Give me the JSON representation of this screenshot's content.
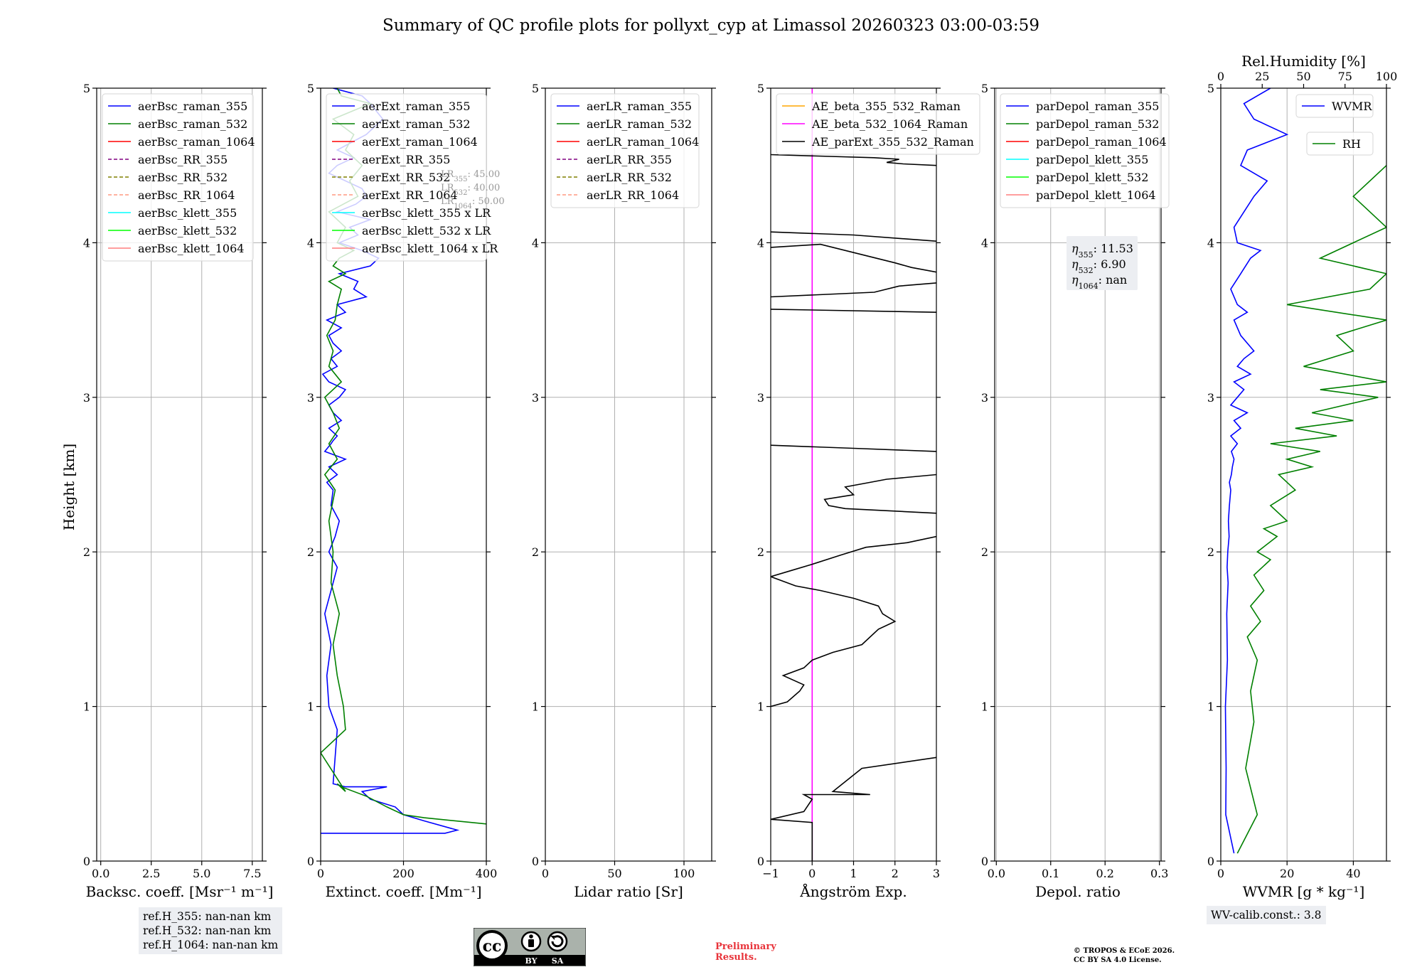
{
  "figure": {
    "title": "Summary of QC profile plots for pollyxt_cyp at Limassol 20260323 03:00-03:59",
    "ylabel": "Height [km]",
    "ref_heights": [
      "ref.H_355: nan-nan km",
      "ref.H_532: nan-nan km",
      "ref.H_1064: nan-nan km"
    ],
    "wv_calib": "WV-calib.const.: 3.8",
    "preliminary": [
      "Preliminary",
      "Results."
    ],
    "copyright": [
      "© TROPOS & ECoE 2026.",
      "CC BY SA 4.0 License."
    ],
    "cc_logo": {
      "by": "BY",
      "sa": "SA",
      "cc": "cc"
    }
  },
  "colors": {
    "blue": "#0000ff",
    "green": "#008000",
    "red": "#ff0000",
    "purple": "#800080",
    "olive": "#808000",
    "salmon": "#ff9980",
    "cyan": "#00ffff",
    "lime": "#00ff00",
    "lightred": "#ff7f7f",
    "orange": "#ffa500",
    "magenta": "#ff00ff",
    "black": "#000000"
  },
  "chart_data": [
    {
      "type": "line",
      "id": "bsc",
      "xlabel": "Backsc. coeff. [Msr⁻¹ m⁻¹]",
      "xlim": [
        -0.2,
        8.0
      ],
      "ylim": [
        0,
        5
      ],
      "xticks": [
        0,
        2.5,
        5,
        7.5
      ],
      "xtick_labels": [
        "0.0",
        "2.5",
        "5.0",
        "7.5"
      ],
      "yticks": [
        0,
        1,
        2,
        3,
        4,
        5
      ],
      "ytick_labels": [
        "0",
        "1",
        "2",
        "3",
        "4",
        "5"
      ],
      "grid": true,
      "legend_position": "top-left",
      "legend": [
        {
          "label": "aerBsc_raman_355",
          "color": "blue",
          "dash": false
        },
        {
          "label": "aerBsc_raman_532",
          "color": "green",
          "dash": false
        },
        {
          "label": "aerBsc_raman_1064",
          "color": "red",
          "dash": false
        },
        {
          "label": "aerBsc_RR_355",
          "color": "purple",
          "dash": true
        },
        {
          "label": "aerBsc_RR_532",
          "color": "olive",
          "dash": true
        },
        {
          "label": "aerBsc_RR_1064",
          "color": "salmon",
          "dash": true
        },
        {
          "label": "aerBsc_klett_355",
          "color": "cyan",
          "dash": false
        },
        {
          "label": "aerBsc_klett_532",
          "color": "lime",
          "dash": false
        },
        {
          "label": "aerBsc_klett_1064",
          "color": "lightred",
          "dash": false
        }
      ],
      "series": []
    },
    {
      "type": "line",
      "id": "ext",
      "xlabel": "Extinct. coeff. [Mm⁻¹]",
      "xlim": [
        0,
        400
      ],
      "ylim": [
        0,
        5
      ],
      "xticks": [
        0,
        200,
        400
      ],
      "xtick_labels": [
        "0",
        "200",
        "400"
      ],
      "yticks": [
        0,
        1,
        2,
        3,
        4,
        5
      ],
      "ytick_labels": [
        "0",
        "1",
        "2",
        "3",
        "4",
        "5"
      ],
      "grid": true,
      "legend_position": "top-left",
      "legend": [
        {
          "label": "aerExt_raman_355",
          "color": "blue",
          "dash": false
        },
        {
          "label": "aerExt_raman_532",
          "color": "green",
          "dash": false
        },
        {
          "label": "aerExt_raman_1064",
          "color": "red",
          "dash": false
        },
        {
          "label": "aerExt_RR_355",
          "color": "purple",
          "dash": true
        },
        {
          "label": "aerExt_RR_532",
          "color": "olive",
          "dash": true
        },
        {
          "label": "aerExt_RR_1064",
          "color": "salmon",
          "dash": true
        },
        {
          "label": "aerBsc_klett_355 x LR",
          "color": "cyan",
          "dash": false
        },
        {
          "label": "aerBsc_klett_532 x LR",
          "color": "lime",
          "dash": false
        },
        {
          "label": "aerBsc_klett_1064 x LR",
          "color": "lightred",
          "dash": false
        }
      ],
      "annotations": [
        "LR355: 45.00",
        "LR532: 40.00",
        "LR1064: 50.00"
      ],
      "series": [
        {
          "name": "aerExt_raman_355",
          "color": "blue",
          "x": [
            0,
            300,
            330,
            250,
            200,
            180,
            120,
            100,
            160,
            60,
            30,
            40,
            20,
            15,
            25,
            10,
            30,
            40,
            20,
            35,
            45,
            25,
            30,
            15,
            40,
            20,
            60,
            10,
            25,
            30,
            40,
            20,
            50,
            30,
            20,
            45,
            60,
            20,
            5,
            40,
            25,
            50,
            30,
            20,
            50,
            15,
            60,
            40,
            110,
            80,
            90,
            45,
            120,
            140,
            100,
            45,
            90,
            70,
            120,
            40,
            85,
            110,
            100,
            60,
            20,
            40,
            80,
            40,
            110,
            150,
            120,
            100,
            30
          ],
          "y": [
            0.18,
            0.18,
            0.2,
            0.26,
            0.3,
            0.35,
            0.4,
            0.45,
            0.48,
            0.48,
            0.5,
            0.85,
            1.0,
            1.2,
            1.4,
            1.6,
            1.8,
            1.9,
            2.0,
            2.1,
            2.2,
            2.3,
            2.4,
            2.45,
            2.5,
            2.55,
            2.6,
            2.65,
            2.7,
            2.72,
            2.75,
            2.8,
            2.85,
            2.9,
            2.95,
            3.0,
            3.05,
            3.1,
            3.15,
            3.2,
            3.25,
            3.3,
            3.35,
            3.4,
            3.45,
            3.5,
            3.55,
            3.6,
            3.65,
            3.7,
            3.75,
            3.8,
            3.85,
            3.9,
            3.95,
            4.0,
            4.05,
            4.1,
            4.15,
            4.2,
            4.25,
            4.3,
            4.35,
            4.4,
            4.45,
            4.5,
            4.55,
            4.6,
            4.7,
            4.8,
            4.9,
            4.95,
            5.0
          ]
        },
        {
          "name": "aerExt_raman_532",
          "color": "green",
          "x": [
            420,
            400,
            250,
            200,
            160,
            110,
            50,
            40,
            60,
            0,
            60,
            55,
            40,
            30,
            45,
            25,
            30,
            20,
            35,
            10,
            40,
            20,
            45,
            30,
            10,
            50,
            20,
            30,
            15,
            35,
            40,
            50,
            20,
            60,
            30,
            45,
            80,
            40,
            60,
            20,
            90,
            70,
            100,
            60,
            80,
            30,
            120,
            50,
            40
          ],
          "y": [
            0.18,
            0.24,
            0.28,
            0.3,
            0.35,
            0.42,
            0.48,
            0.5,
            0.45,
            0.7,
            0.85,
            1.0,
            1.2,
            1.4,
            1.6,
            1.8,
            2.0,
            2.2,
            2.4,
            2.5,
            2.6,
            2.7,
            2.8,
            2.9,
            3.0,
            3.1,
            3.2,
            3.3,
            3.4,
            3.5,
            3.6,
            3.7,
            3.75,
            3.8,
            3.85,
            3.9,
            3.95,
            4.0,
            4.1,
            4.2,
            4.3,
            4.4,
            4.5,
            4.6,
            4.7,
            4.8,
            4.9,
            4.95,
            5.0
          ]
        }
      ]
    },
    {
      "type": "line",
      "id": "lr",
      "xlabel": "Lidar ratio [Sr]",
      "xlim": [
        0,
        120
      ],
      "ylim": [
        0,
        5
      ],
      "xticks": [
        0,
        50,
        100
      ],
      "xtick_labels": [
        "0",
        "50",
        "100"
      ],
      "yticks": [
        0,
        1,
        2,
        3,
        4,
        5
      ],
      "ytick_labels": [
        "0",
        "1",
        "2",
        "3",
        "4",
        "5"
      ],
      "grid": true,
      "legend_position": "top-left",
      "legend": [
        {
          "label": "aerLR_raman_355",
          "color": "blue",
          "dash": false
        },
        {
          "label": "aerLR_raman_532",
          "color": "green",
          "dash": false
        },
        {
          "label": "aerLR_raman_1064",
          "color": "red",
          "dash": false
        },
        {
          "label": "aerLR_RR_355",
          "color": "purple",
          "dash": true
        },
        {
          "label": "aerLR_RR_532",
          "color": "olive",
          "dash": true
        },
        {
          "label": "aerLR_RR_1064",
          "color": "salmon",
          "dash": true
        }
      ],
      "series": []
    },
    {
      "type": "line",
      "id": "ae",
      "xlabel": "Ångström Exp.",
      "xlim": [
        -1,
        3
      ],
      "ylim": [
        0,
        5
      ],
      "xticks": [
        -1,
        0,
        1,
        2,
        3
      ],
      "xtick_labels": [
        "−1",
        "0",
        "1",
        "2",
        "3"
      ],
      "yticks": [
        0,
        1,
        2,
        3,
        4,
        5
      ],
      "ytick_labels": [
        "0",
        "1",
        "2",
        "3",
        "4",
        "5"
      ],
      "grid": true,
      "legend_position": "top-left",
      "legend": [
        {
          "label": "AE_beta_355_532_Raman",
          "color": "orange",
          "dash": false
        },
        {
          "label": "AE_beta_532_1064_Raman",
          "color": "magenta",
          "dash": false
        },
        {
          "label": "AE_parExt_355_532_Raman",
          "color": "black",
          "dash": false
        }
      ],
      "series": [
        {
          "name": "AE_beta_532_1064_Raman",
          "color": "magenta",
          "x": [
            0,
            0
          ],
          "y": [
            0,
            5
          ]
        },
        {
          "name": "AE_parExt_355_532_Raman",
          "color": "black",
          "x": [
            0,
            0,
            -1,
            -0.2,
            0.0,
            -0.2,
            1.4,
            0.5,
            1.2,
            3.0,
            null,
            -1,
            -0.6,
            -0.3,
            -0.2,
            -0.7,
            -0.2,
            0.0,
            0.5,
            1.2,
            1.6,
            2.0,
            1.7,
            1.6,
            1.0,
            0.2,
            -0.4,
            -1,
            -0.5,
            0.0,
            0.7,
            1.3,
            2.3,
            3.0,
            null,
            3.0,
            0.8,
            0.4,
            0.3,
            1.0,
            0.8,
            1.4,
            1.8,
            3.0,
            null,
            -1,
            1.0,
            3.0,
            null,
            -1,
            3.0,
            null,
            -1,
            1.5,
            2.1,
            3.0,
            null,
            -1,
            0.2,
            2.0,
            2.4,
            3.0,
            null,
            -1,
            1.0,
            3.0,
            null,
            -1,
            1.5,
            2.1,
            1.8,
            2.2,
            3.0
          ],
          "y": [
            0,
            0.25,
            0.27,
            0.32,
            0.4,
            0.43,
            0.43,
            0.45,
            0.6,
            0.67,
            null,
            1.0,
            1.03,
            1.1,
            1.14,
            1.2,
            1.25,
            1.3,
            1.35,
            1.4,
            1.5,
            1.55,
            1.6,
            1.65,
            1.7,
            1.75,
            1.78,
            1.84,
            1.88,
            1.92,
            1.98,
            2.03,
            2.06,
            2.1,
            null,
            2.25,
            2.28,
            2.3,
            2.34,
            2.37,
            2.42,
            2.45,
            2.47,
            2.5,
            null,
            2.69,
            2.67,
            2.65,
            null,
            3.57,
            3.55,
            null,
            3.65,
            3.68,
            3.72,
            3.74,
            null,
            3.97,
            3.99,
            3.87,
            3.84,
            3.81,
            null,
            4.07,
            4.05,
            4.01,
            null,
            4.57,
            4.55,
            4.54,
            4.52,
            4.51,
            4.5
          ]
        }
      ]
    },
    {
      "type": "line",
      "id": "depol",
      "xlabel": "Depol. ratio",
      "xlim": [
        -0.003,
        0.303
      ],
      "ylim": [
        0,
        5
      ],
      "xticks": [
        0,
        0.1,
        0.2,
        0.3
      ],
      "xtick_labels": [
        "0.0",
        "0.1",
        "0.2",
        "0.3"
      ],
      "yticks": [
        0,
        1,
        2,
        3,
        4,
        5
      ],
      "ytick_labels": [
        "0",
        "1",
        "2",
        "3",
        "4",
        "5"
      ],
      "grid": true,
      "legend_position": "top-left",
      "legend": [
        {
          "label": "parDepol_raman_355",
          "color": "blue",
          "dash": false
        },
        {
          "label": "parDepol_raman_532",
          "color": "green",
          "dash": false
        },
        {
          "label": "parDepol_raman_1064",
          "color": "red",
          "dash": false
        },
        {
          "label": "parDepol_klett_355",
          "color": "cyan",
          "dash": false
        },
        {
          "label": "parDepol_klett_532",
          "color": "lime",
          "dash": false
        },
        {
          "label": "parDepol_klett_1064",
          "color": "lightred",
          "dash": false
        }
      ],
      "eta_labels": [
        "η355: 11.53",
        "η532: 6.90",
        "η1064: nan"
      ],
      "series": []
    },
    {
      "type": "line",
      "id": "wv",
      "xlabel": "WVMR [g * kg⁻¹]",
      "x2label": "Rel.Humidity [%]",
      "xlim": [
        0,
        50
      ],
      "x2lim": [
        0,
        100
      ],
      "ylim": [
        0,
        5
      ],
      "xticks": [
        0,
        20,
        40
      ],
      "xtick_labels": [
        "0",
        "20",
        "40"
      ],
      "x2ticks": [
        0,
        25,
        50,
        75,
        100
      ],
      "x2tick_labels": [
        "0",
        "25",
        "50",
        "75",
        "100"
      ],
      "yticks": [
        0,
        1,
        2,
        3,
        4,
        5
      ],
      "ytick_labels": [
        "0",
        "1",
        "2",
        "3",
        "4",
        "5"
      ],
      "grid": true,
      "legend": [
        {
          "label": "WVMR",
          "color": "blue",
          "dash": false
        },
        {
          "label": "RH",
          "color": "green",
          "dash": false
        }
      ],
      "series": [
        {
          "name": "WVMR",
          "color": "blue",
          "axis": "x",
          "x": [
            4,
            1.5,
            1.6,
            1.4,
            2.0,
            1.8,
            2.2,
            1.9,
            2.1,
            2.5,
            2.3,
            2.6,
            3.0,
            2.6,
            3.2,
            3.5,
            4.0,
            3.2,
            5,
            3,
            6,
            4,
            8,
            3,
            5,
            7,
            4,
            9,
            5,
            7,
            10,
            6,
            4,
            8,
            5,
            3,
            6,
            9,
            12,
            5,
            4,
            7,
            10,
            14,
            6,
            8,
            20,
            10,
            7,
            15
          ],
          "y": [
            0.05,
            0.3,
            0.6,
            1.0,
            1.3,
            1.6,
            1.8,
            1.9,
            2.0,
            2.1,
            2.2,
            2.3,
            2.4,
            2.45,
            2.5,
            2.55,
            2.6,
            2.65,
            2.7,
            2.75,
            2.8,
            2.85,
            2.9,
            2.95,
            3.0,
            3.05,
            3.1,
            3.15,
            3.2,
            3.25,
            3.3,
            3.4,
            3.5,
            3.55,
            3.6,
            3.7,
            3.8,
            3.9,
            3.95,
            4.0,
            4.1,
            4.2,
            4.3,
            4.4,
            4.5,
            4.6,
            4.7,
            4.8,
            4.9,
            5.0
          ]
        },
        {
          "name": "RH",
          "color": "green",
          "axis": "x2",
          "x": [
            10,
            22,
            15,
            20,
            18,
            22,
            16,
            24,
            18,
            26,
            20,
            30,
            22,
            34,
            26,
            40,
            30,
            45,
            35,
            55,
            40,
            60,
            30,
            70,
            45,
            80,
            55,
            95,
            60,
            100,
            50,
            80,
            70,
            100,
            40,
            90,
            100,
            60,
            100,
            80,
            100
          ],
          "y": [
            0.05,
            0.3,
            0.6,
            0.9,
            1.1,
            1.3,
            1.45,
            1.55,
            1.65,
            1.75,
            1.85,
            1.95,
            2.0,
            2.1,
            2.15,
            2.2,
            2.3,
            2.4,
            2.5,
            2.55,
            2.6,
            2.65,
            2.7,
            2.75,
            2.8,
            2.85,
            2.9,
            3.0,
            3.05,
            3.1,
            3.2,
            3.3,
            3.4,
            3.5,
            3.6,
            3.7,
            3.8,
            3.9,
            4.1,
            4.3,
            4.5
          ]
        }
      ]
    }
  ]
}
